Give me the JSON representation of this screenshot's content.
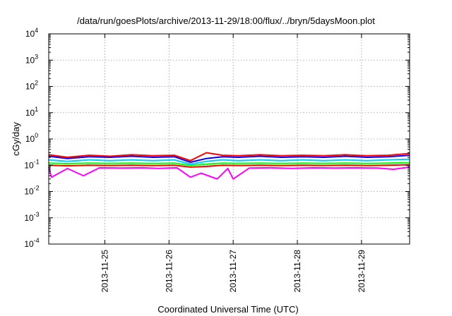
{
  "chart_data": {
    "type": "line",
    "title": "/data/run/goesPlots/archive/2013-11-29/18:00/flux/../bryn/5daysMoon.plot",
    "xlabel": "Coordinated Universal Time (UTC)",
    "ylabel": "cGy/day",
    "yscale": "log",
    "ylim": [
      0.0001,
      10000
    ],
    "xlim": [
      "2013-11-24 03:00",
      "2013-11-29 18:00"
    ],
    "grid": true,
    "legend": "none",
    "y_ticks": [
      {
        "value": 0.0001,
        "base": "10",
        "exp": "-4"
      },
      {
        "value": 0.001,
        "base": "10",
        "exp": "-3"
      },
      {
        "value": 0.01,
        "base": "10",
        "exp": "-2"
      },
      {
        "value": 0.1,
        "base": "10",
        "exp": "-1"
      },
      {
        "value": 1,
        "base": "10",
        "exp": "0"
      },
      {
        "value": 10,
        "base": "10",
        "exp": "1"
      },
      {
        "value": 100,
        "base": "10",
        "exp": "2"
      },
      {
        "value": 1000,
        "base": "10",
        "exp": "3"
      },
      {
        "value": 10000,
        "base": "10",
        "exp": "4"
      }
    ],
    "x_ticks": [
      {
        "value": "2013-11-25 00:00",
        "label": "2013-11-25"
      },
      {
        "value": "2013-11-26 00:00",
        "label": "2013-11-26"
      },
      {
        "value": "2013-11-27 00:00",
        "label": "2013-11-27"
      },
      {
        "value": "2013-11-28 00:00",
        "label": "2013-11-28"
      },
      {
        "value": "2013-11-29 00:00",
        "label": "2013-11-29"
      }
    ],
    "series": [
      {
        "color": "#ff00ff",
        "x": [
          "2013-11-24 03:00",
          "2013-11-24 04:00",
          "2013-11-24 10:00",
          "2013-11-24 16:00",
          "2013-11-24 22:00",
          "2013-11-25 06:00",
          "2013-11-25 14:00",
          "2013-11-25 20:00",
          "2013-11-26 03:00",
          "2013-11-26 08:00",
          "2013-11-26 12:00",
          "2013-11-26 18:00",
          "2013-11-26 22:00",
          "2013-11-27 00:00",
          "2013-11-27 06:00",
          "2013-11-27 14:00",
          "2013-11-27 22:00",
          "2013-11-28 06:00",
          "2013-11-28 14:00",
          "2013-11-28 22:00",
          "2013-11-29 06:00",
          "2013-11-29 12:00",
          "2013-11-29 18:00"
        ],
        "values": [
          0.085,
          0.035,
          0.075,
          0.04,
          0.08,
          0.078,
          0.08,
          0.076,
          0.08,
          0.035,
          0.05,
          0.03,
          0.075,
          0.03,
          0.078,
          0.08,
          0.076,
          0.08,
          0.078,
          0.08,
          0.078,
          0.07,
          0.085
        ]
      },
      {
        "color": "#ff0000",
        "x": [
          "2013-11-24 03:00",
          "2013-11-24 10:00",
          "2013-11-24 18:00",
          "2013-11-25 02:00",
          "2013-11-25 10:00",
          "2013-11-25 18:00",
          "2013-11-26 02:00",
          "2013-11-26 08:00",
          "2013-11-26 14:00",
          "2013-11-26 20:00",
          "2013-11-27 02:00",
          "2013-11-27 10:00",
          "2013-11-27 18:00",
          "2013-11-28 02:00",
          "2013-11-28 10:00",
          "2013-11-28 18:00",
          "2013-11-29 02:00",
          "2013-11-29 10:00",
          "2013-11-29 18:00"
        ],
        "values": [
          0.1,
          0.095,
          0.1,
          0.098,
          0.1,
          0.097,
          0.1,
          0.085,
          0.09,
          0.1,
          0.098,
          0.1,
          0.097,
          0.1,
          0.098,
          0.1,
          0.097,
          0.1,
          0.105
        ]
      },
      {
        "color": "#00ff00",
        "x": [
          "2013-11-24 03:00",
          "2013-11-24 10:00",
          "2013-11-24 18:00",
          "2013-11-25 02:00",
          "2013-11-25 10:00",
          "2013-11-25 18:00",
          "2013-11-26 02:00",
          "2013-11-26 08:00",
          "2013-11-26 14:00",
          "2013-11-26 20:00",
          "2013-11-27 02:00",
          "2013-11-27 10:00",
          "2013-11-27 18:00",
          "2013-11-28 02:00",
          "2013-11-28 10:00",
          "2013-11-28 18:00",
          "2013-11-29 02:00",
          "2013-11-29 10:00",
          "2013-11-29 18:00"
        ],
        "values": [
          0.12,
          0.115,
          0.12,
          0.118,
          0.12,
          0.117,
          0.12,
          0.1,
          0.11,
          0.12,
          0.118,
          0.12,
          0.117,
          0.12,
          0.118,
          0.12,
          0.117,
          0.12,
          0.125
        ]
      },
      {
        "color": "#00ccff",
        "x": [
          "2013-11-24 03:00",
          "2013-11-24 10:00",
          "2013-11-24 18:00",
          "2013-11-25 02:00",
          "2013-11-25 10:00",
          "2013-11-25 18:00",
          "2013-11-26 02:00",
          "2013-11-26 08:00",
          "2013-11-26 14:00",
          "2013-11-26 20:00",
          "2013-11-27 02:00",
          "2013-11-27 10:00",
          "2013-11-27 18:00",
          "2013-11-28 02:00",
          "2013-11-28 10:00",
          "2013-11-28 18:00",
          "2013-11-29 02:00",
          "2013-11-29 10:00",
          "2013-11-29 18:00"
        ],
        "values": [
          0.16,
          0.14,
          0.16,
          0.15,
          0.16,
          0.15,
          0.16,
          0.11,
          0.14,
          0.16,
          0.15,
          0.16,
          0.15,
          0.16,
          0.15,
          0.16,
          0.15,
          0.16,
          0.17
        ]
      },
      {
        "color": "#0000ff",
        "x": [
          "2013-11-24 03:00",
          "2013-11-24 10:00",
          "2013-11-24 18:00",
          "2013-11-25 02:00",
          "2013-11-25 10:00",
          "2013-11-25 18:00",
          "2013-11-26 02:00",
          "2013-11-26 08:00",
          "2013-11-26 14:00",
          "2013-11-26 20:00",
          "2013-11-27 02:00",
          "2013-11-27 10:00",
          "2013-11-27 18:00",
          "2013-11-28 02:00",
          "2013-11-28 10:00",
          "2013-11-28 18:00",
          "2013-11-29 02:00",
          "2013-11-29 10:00",
          "2013-11-29 18:00"
        ],
        "values": [
          0.22,
          0.18,
          0.21,
          0.2,
          0.22,
          0.2,
          0.21,
          0.13,
          0.18,
          0.21,
          0.2,
          0.22,
          0.2,
          0.21,
          0.2,
          0.22,
          0.2,
          0.21,
          0.24
        ]
      },
      {
        "color": "#ff0000",
        "x": [
          "2013-11-24 03:00",
          "2013-11-24 10:00",
          "2013-11-24 18:00",
          "2013-11-25 02:00",
          "2013-11-25 10:00",
          "2013-11-25 18:00",
          "2013-11-26 02:00",
          "2013-11-26 08:00",
          "2013-11-26 14:00",
          "2013-11-26 20:00",
          "2013-11-27 02:00",
          "2013-11-27 10:00",
          "2013-11-27 18:00",
          "2013-11-28 02:00",
          "2013-11-28 10:00",
          "2013-11-28 18:00",
          "2013-11-29 02:00",
          "2013-11-29 10:00",
          "2013-11-29 18:00"
        ],
        "values": [
          0.25,
          0.2,
          0.24,
          0.22,
          0.25,
          0.23,
          0.24,
          0.15,
          0.3,
          0.24,
          0.23,
          0.25,
          0.23,
          0.24,
          0.23,
          0.25,
          0.23,
          0.24,
          0.28
        ]
      }
    ]
  }
}
